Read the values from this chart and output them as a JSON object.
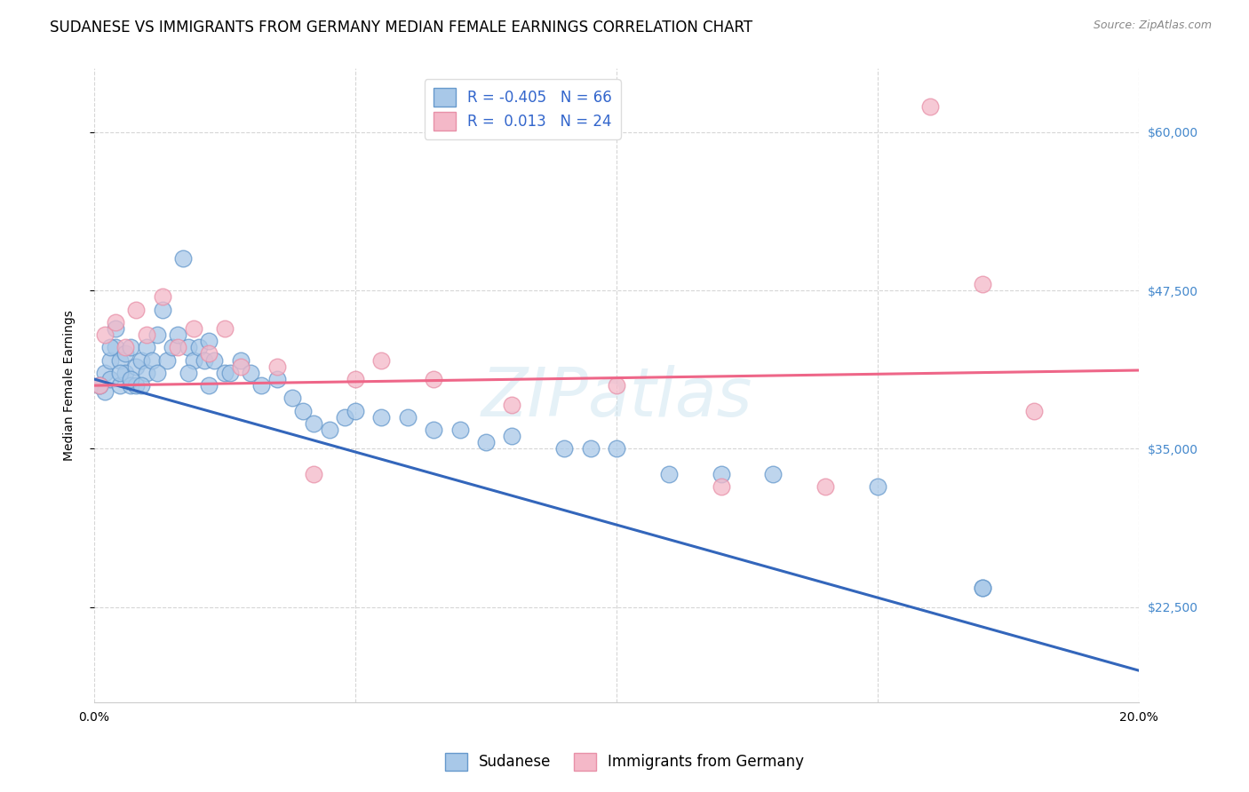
{
  "title": "SUDANESE VS IMMIGRANTS FROM GERMANY MEDIAN FEMALE EARNINGS CORRELATION CHART",
  "source": "Source: ZipAtlas.com",
  "ylabel": "Median Female Earnings",
  "xlim": [
    0.0,
    0.2
  ],
  "ylim": [
    15000,
    65000
  ],
  "yticks": [
    22500,
    35000,
    47500,
    60000
  ],
  "ytick_labels": [
    "$22,500",
    "$35,000",
    "$47,500",
    "$60,000"
  ],
  "xticks": [
    0.0,
    0.05,
    0.1,
    0.15,
    0.2
  ],
  "xtick_labels": [
    "0.0%",
    "",
    "",
    "",
    "20.0%"
  ],
  "legend1_label": "R = -0.405   N = 66",
  "legend2_label": "R =  0.013   N = 24",
  "blue_color": "#a8c8e8",
  "pink_color": "#f4b8c8",
  "blue_edge_color": "#6699cc",
  "pink_edge_color": "#e890a8",
  "blue_line_color": "#3366bb",
  "pink_line_color": "#ee6688",
  "watermark": "ZIPatlas",
  "sudanese_x": [
    0.001,
    0.002,
    0.002,
    0.003,
    0.003,
    0.004,
    0.004,
    0.005,
    0.005,
    0.006,
    0.006,
    0.007,
    0.007,
    0.008,
    0.008,
    0.009,
    0.01,
    0.01,
    0.011,
    0.012,
    0.013,
    0.014,
    0.015,
    0.016,
    0.017,
    0.018,
    0.019,
    0.02,
    0.021,
    0.022,
    0.023,
    0.025,
    0.026,
    0.028,
    0.03,
    0.032,
    0.035,
    0.038,
    0.04,
    0.042,
    0.045,
    0.048,
    0.05,
    0.055,
    0.06,
    0.065,
    0.07,
    0.075,
    0.08,
    0.09,
    0.095,
    0.1,
    0.11,
    0.12,
    0.13,
    0.15,
    0.17,
    0.001,
    0.003,
    0.005,
    0.007,
    0.009,
    0.012,
    0.018,
    0.022,
    0.17
  ],
  "sudanese_y": [
    40000,
    39500,
    41000,
    42000,
    40500,
    43000,
    44500,
    40000,
    42000,
    41000,
    42500,
    40000,
    43000,
    41500,
    40000,
    42000,
    41000,
    43000,
    42000,
    44000,
    46000,
    42000,
    43000,
    44000,
    50000,
    43000,
    42000,
    43000,
    42000,
    43500,
    42000,
    41000,
    41000,
    42000,
    41000,
    40000,
    40500,
    39000,
    38000,
    37000,
    36500,
    37500,
    38000,
    37500,
    37500,
    36500,
    36500,
    35500,
    36000,
    35000,
    35000,
    35000,
    33000,
    33000,
    33000,
    32000,
    24000,
    40000,
    43000,
    41000,
    40500,
    40000,
    41000,
    41000,
    40000,
    24000
  ],
  "germany_x": [
    0.001,
    0.002,
    0.004,
    0.006,
    0.008,
    0.01,
    0.013,
    0.016,
    0.019,
    0.022,
    0.025,
    0.028,
    0.035,
    0.042,
    0.05,
    0.055,
    0.065,
    0.08,
    0.1,
    0.12,
    0.14,
    0.16,
    0.17,
    0.18
  ],
  "germany_y": [
    40000,
    44000,
    45000,
    43000,
    46000,
    44000,
    47000,
    43000,
    44500,
    42500,
    44500,
    41500,
    41500,
    33000,
    40500,
    42000,
    40500,
    38500,
    40000,
    32000,
    32000,
    62000,
    48000,
    38000
  ],
  "blue_trendline_x": [
    0.0,
    0.2
  ],
  "blue_trendline_y": [
    40500,
    17500
  ],
  "pink_trendline_x": [
    0.0,
    0.2
  ],
  "pink_trendline_y": [
    40000,
    41200
  ],
  "background_color": "#ffffff",
  "grid_color": "#cccccc",
  "title_fontsize": 12,
  "axis_label_fontsize": 10,
  "tick_fontsize": 10,
  "legend_fontsize": 12
}
